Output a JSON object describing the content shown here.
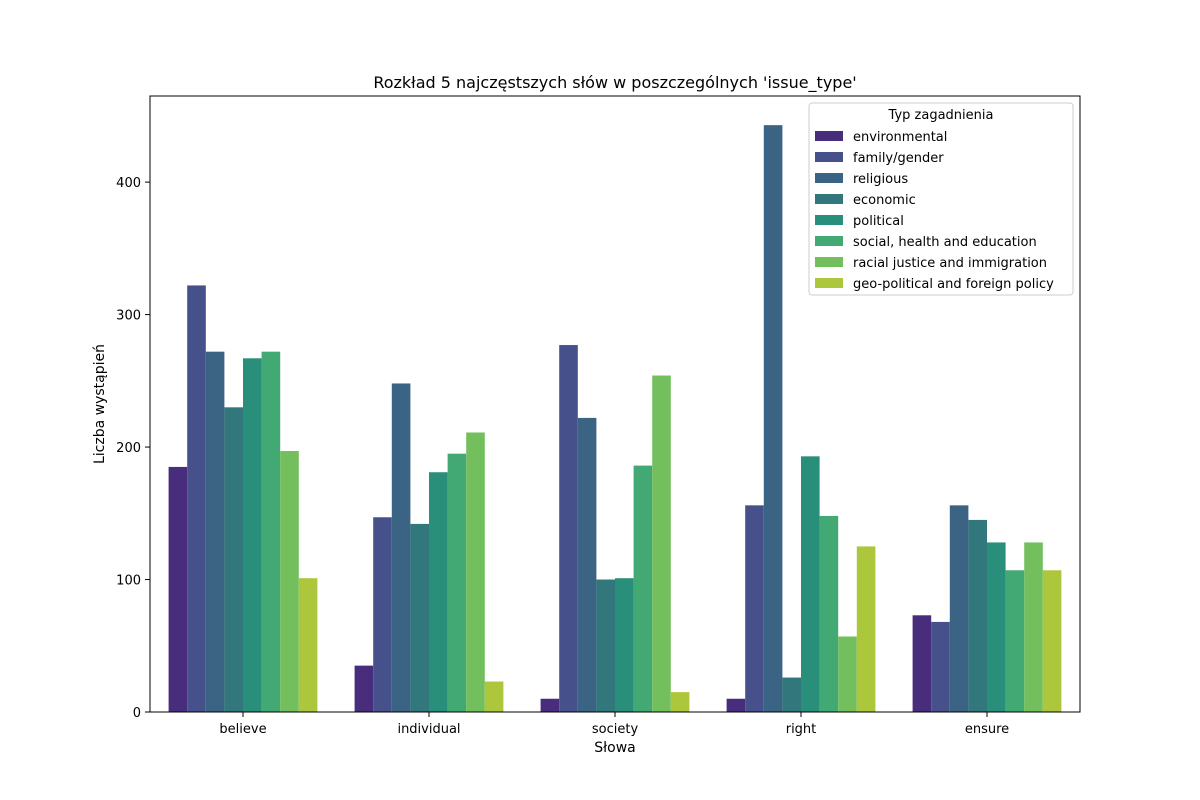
{
  "chart_data": {
    "type": "bar",
    "title": "Rozkład 5 najczęstszych słów w poszczególnych 'issue_type'",
    "xlabel": "Słowa",
    "ylabel": "Liczba wystąpień",
    "ylim": [
      0,
      465
    ],
    "yticks": [
      0,
      100,
      200,
      300,
      400
    ],
    "grid": false,
    "legend": {
      "title": "Typ zagadnienia",
      "placement": "top-right"
    },
    "categories": [
      "believe",
      "individual",
      "society",
      "right",
      "ensure"
    ],
    "series": [
      {
        "name": "environmental",
        "color": "#472d7b",
        "values": [
          185,
          35,
          10,
          10,
          73
        ]
      },
      {
        "name": "family/gender",
        "color": "#46508a",
        "values": [
          322,
          147,
          277,
          156,
          68
        ]
      },
      {
        "name": "religious",
        "color": "#3b6484",
        "values": [
          272,
          248,
          222,
          443,
          156
        ]
      },
      {
        "name": "economic",
        "color": "#31777c",
        "values": [
          230,
          142,
          100,
          26,
          145
        ]
      },
      {
        "name": "political",
        "color": "#2a8f7a",
        "values": [
          267,
          181,
          101,
          193,
          128
        ]
      },
      {
        "name": "social, health and education",
        "color": "#42a874",
        "values": [
          272,
          195,
          186,
          148,
          107
        ]
      },
      {
        "name": "racial justice and immigration",
        "color": "#73bf5e",
        "values": [
          197,
          211,
          254,
          57,
          128
        ]
      },
      {
        "name": "geo-political and foreign policy",
        "color": "#adc73c",
        "values": [
          101,
          23,
          15,
          125,
          107
        ]
      }
    ]
  }
}
